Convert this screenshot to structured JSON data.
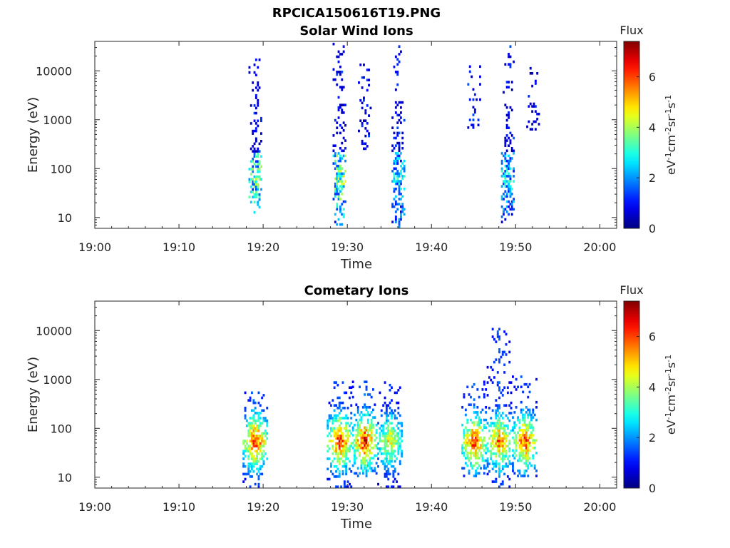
{
  "figure": {
    "title": "RPCICA150616T19.PNG"
  },
  "chart_data": [
    {
      "type": "heatmap",
      "title": "Solar Wind Ions",
      "xlabel": "Time",
      "ylabel": "Energy (eV)",
      "x_ticks": [
        "19:00",
        "19:10",
        "19:20",
        "19:30",
        "19:40",
        "19:50",
        "20:00"
      ],
      "y_ticks": [
        "10",
        "100",
        "1000",
        "10000"
      ],
      "y_scale": "log",
      "xlim_minutes": [
        0,
        62
      ],
      "ylim_eV": [
        6,
        40000
      ],
      "colorbar": {
        "label": "Flux",
        "units": "eV-1cm-2sr-1s-1",
        "ticks": [
          "0",
          "2",
          "4",
          "6"
        ],
        "range": [
          0,
          7.4
        ]
      },
      "bursts": [
        {
          "time": "19:19",
          "energy_eV": [
            12,
            18000
          ],
          "peak_flux": 4.5
        },
        {
          "time": "19:29",
          "energy_eV": [
            6,
            34000
          ],
          "peak_flux": 5.0
        },
        {
          "time": "19:32",
          "energy_eV": [
            240,
            15000
          ],
          "peak_flux": 1.5
        },
        {
          "time": "19:36",
          "energy_eV": [
            6,
            30000
          ],
          "peak_flux": 3.5
        },
        {
          "time": "19:45",
          "energy_eV": [
            650,
            12000
          ],
          "peak_flux": 1.5
        },
        {
          "time": "19:49",
          "energy_eV": [
            6,
            32000
          ],
          "peak_flux": 3.5
        },
        {
          "time": "19:52",
          "energy_eV": [
            600,
            11000
          ],
          "peak_flux": 1.5
        }
      ]
    },
    {
      "type": "heatmap",
      "title": "Cometary Ions",
      "xlabel": "Time",
      "ylabel": "Energy (eV)",
      "x_ticks": [
        "19:00",
        "19:10",
        "19:20",
        "19:30",
        "19:40",
        "19:50",
        "20:00"
      ],
      "y_ticks": [
        "10",
        "100",
        "1000",
        "10000"
      ],
      "y_scale": "log",
      "xlim_minutes": [
        0,
        62
      ],
      "ylim_eV": [
        6,
        40000
      ],
      "colorbar": {
        "label": "Flux",
        "units": "eV-1cm-2sr-1s-1",
        "ticks": [
          "0",
          "2",
          "4",
          "6"
        ],
        "range": [
          0,
          7.4
        ]
      },
      "bursts": [
        {
          "time": "19:19",
          "energy_eV": [
            6,
            550
          ],
          "peak_flux": 7.0
        },
        {
          "time": "19:29",
          "energy_eV": [
            6,
            900
          ],
          "peak_flux": 7.0
        },
        {
          "time": "19:32",
          "energy_eV": [
            10,
            900
          ],
          "peak_flux": 7.2
        },
        {
          "time": "19:35",
          "energy_eV": [
            6,
            900
          ],
          "peak_flux": 5.5
        },
        {
          "time": "19:45",
          "energy_eV": [
            10,
            900
          ],
          "peak_flux": 7.0
        },
        {
          "time": "19:48",
          "energy_eV": [
            6,
            11000
          ],
          "peak_flux": 6.5
        },
        {
          "time": "19:51",
          "energy_eV": [
            10,
            1200
          ],
          "peak_flux": 6.8
        }
      ]
    }
  ]
}
